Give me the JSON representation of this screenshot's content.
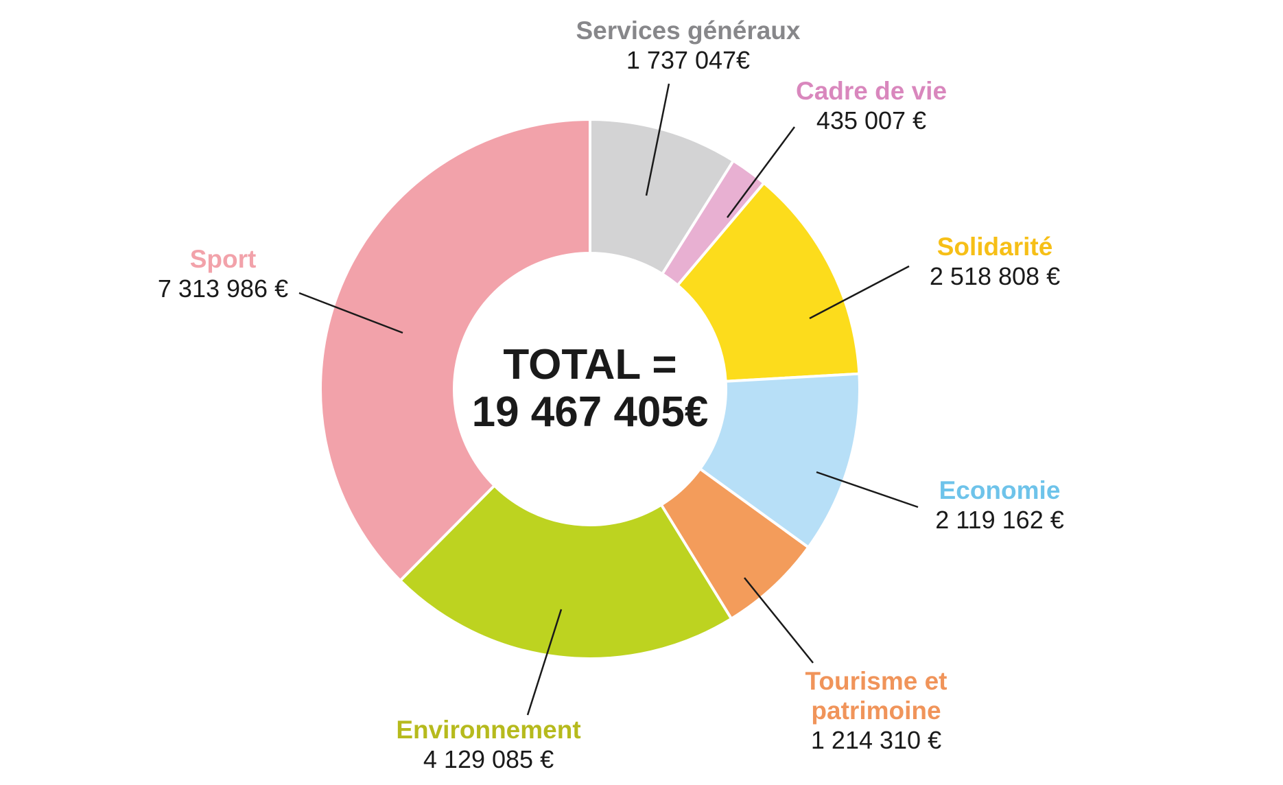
{
  "chart_data": {
    "type": "pie",
    "variant": "donut",
    "center_text": [
      "TOTAL =",
      "19 467 405€"
    ],
    "slices": [
      {
        "name_lines": [
          "Services généraux"
        ],
        "value": 1737047,
        "value_label": "1 737 047€",
        "color": "#d3d3d4",
        "label_color": "#87878a"
      },
      {
        "name_lines": [
          "Cadre de vie"
        ],
        "value": 435007,
        "value_label": "435 007 €",
        "color": "#e8b0d2",
        "label_color": "#d987bd"
      },
      {
        "name_lines": [
          "Solidarité"
        ],
        "value": 2518808,
        "value_label": "2 518 808 €",
        "color": "#fcdc1c",
        "label_color": "#f6bf17"
      },
      {
        "name_lines": [
          "Economie"
        ],
        "value": 2119162,
        "value_label": "2 119 162 €",
        "color": "#b7dff7",
        "label_color": "#6ec3ea"
      },
      {
        "name_lines": [
          "Tourisme et",
          "patrimoine"
        ],
        "value": 1214310,
        "value_label": "1 214 310 €",
        "color": "#f39c5b",
        "label_color": "#f0945a"
      },
      {
        "name_lines": [
          "Environnement"
        ],
        "value": 4129085,
        "value_label": "4 129 085 €",
        "color": "#bdd320",
        "label_color": "#b6ba1d"
      },
      {
        "name_lines": [
          "Sport"
        ],
        "value": 7313986,
        "value_label": "7 313 986 €",
        "color": "#f2a2aa",
        "label_color": "#f2a2aa"
      }
    ]
  }
}
